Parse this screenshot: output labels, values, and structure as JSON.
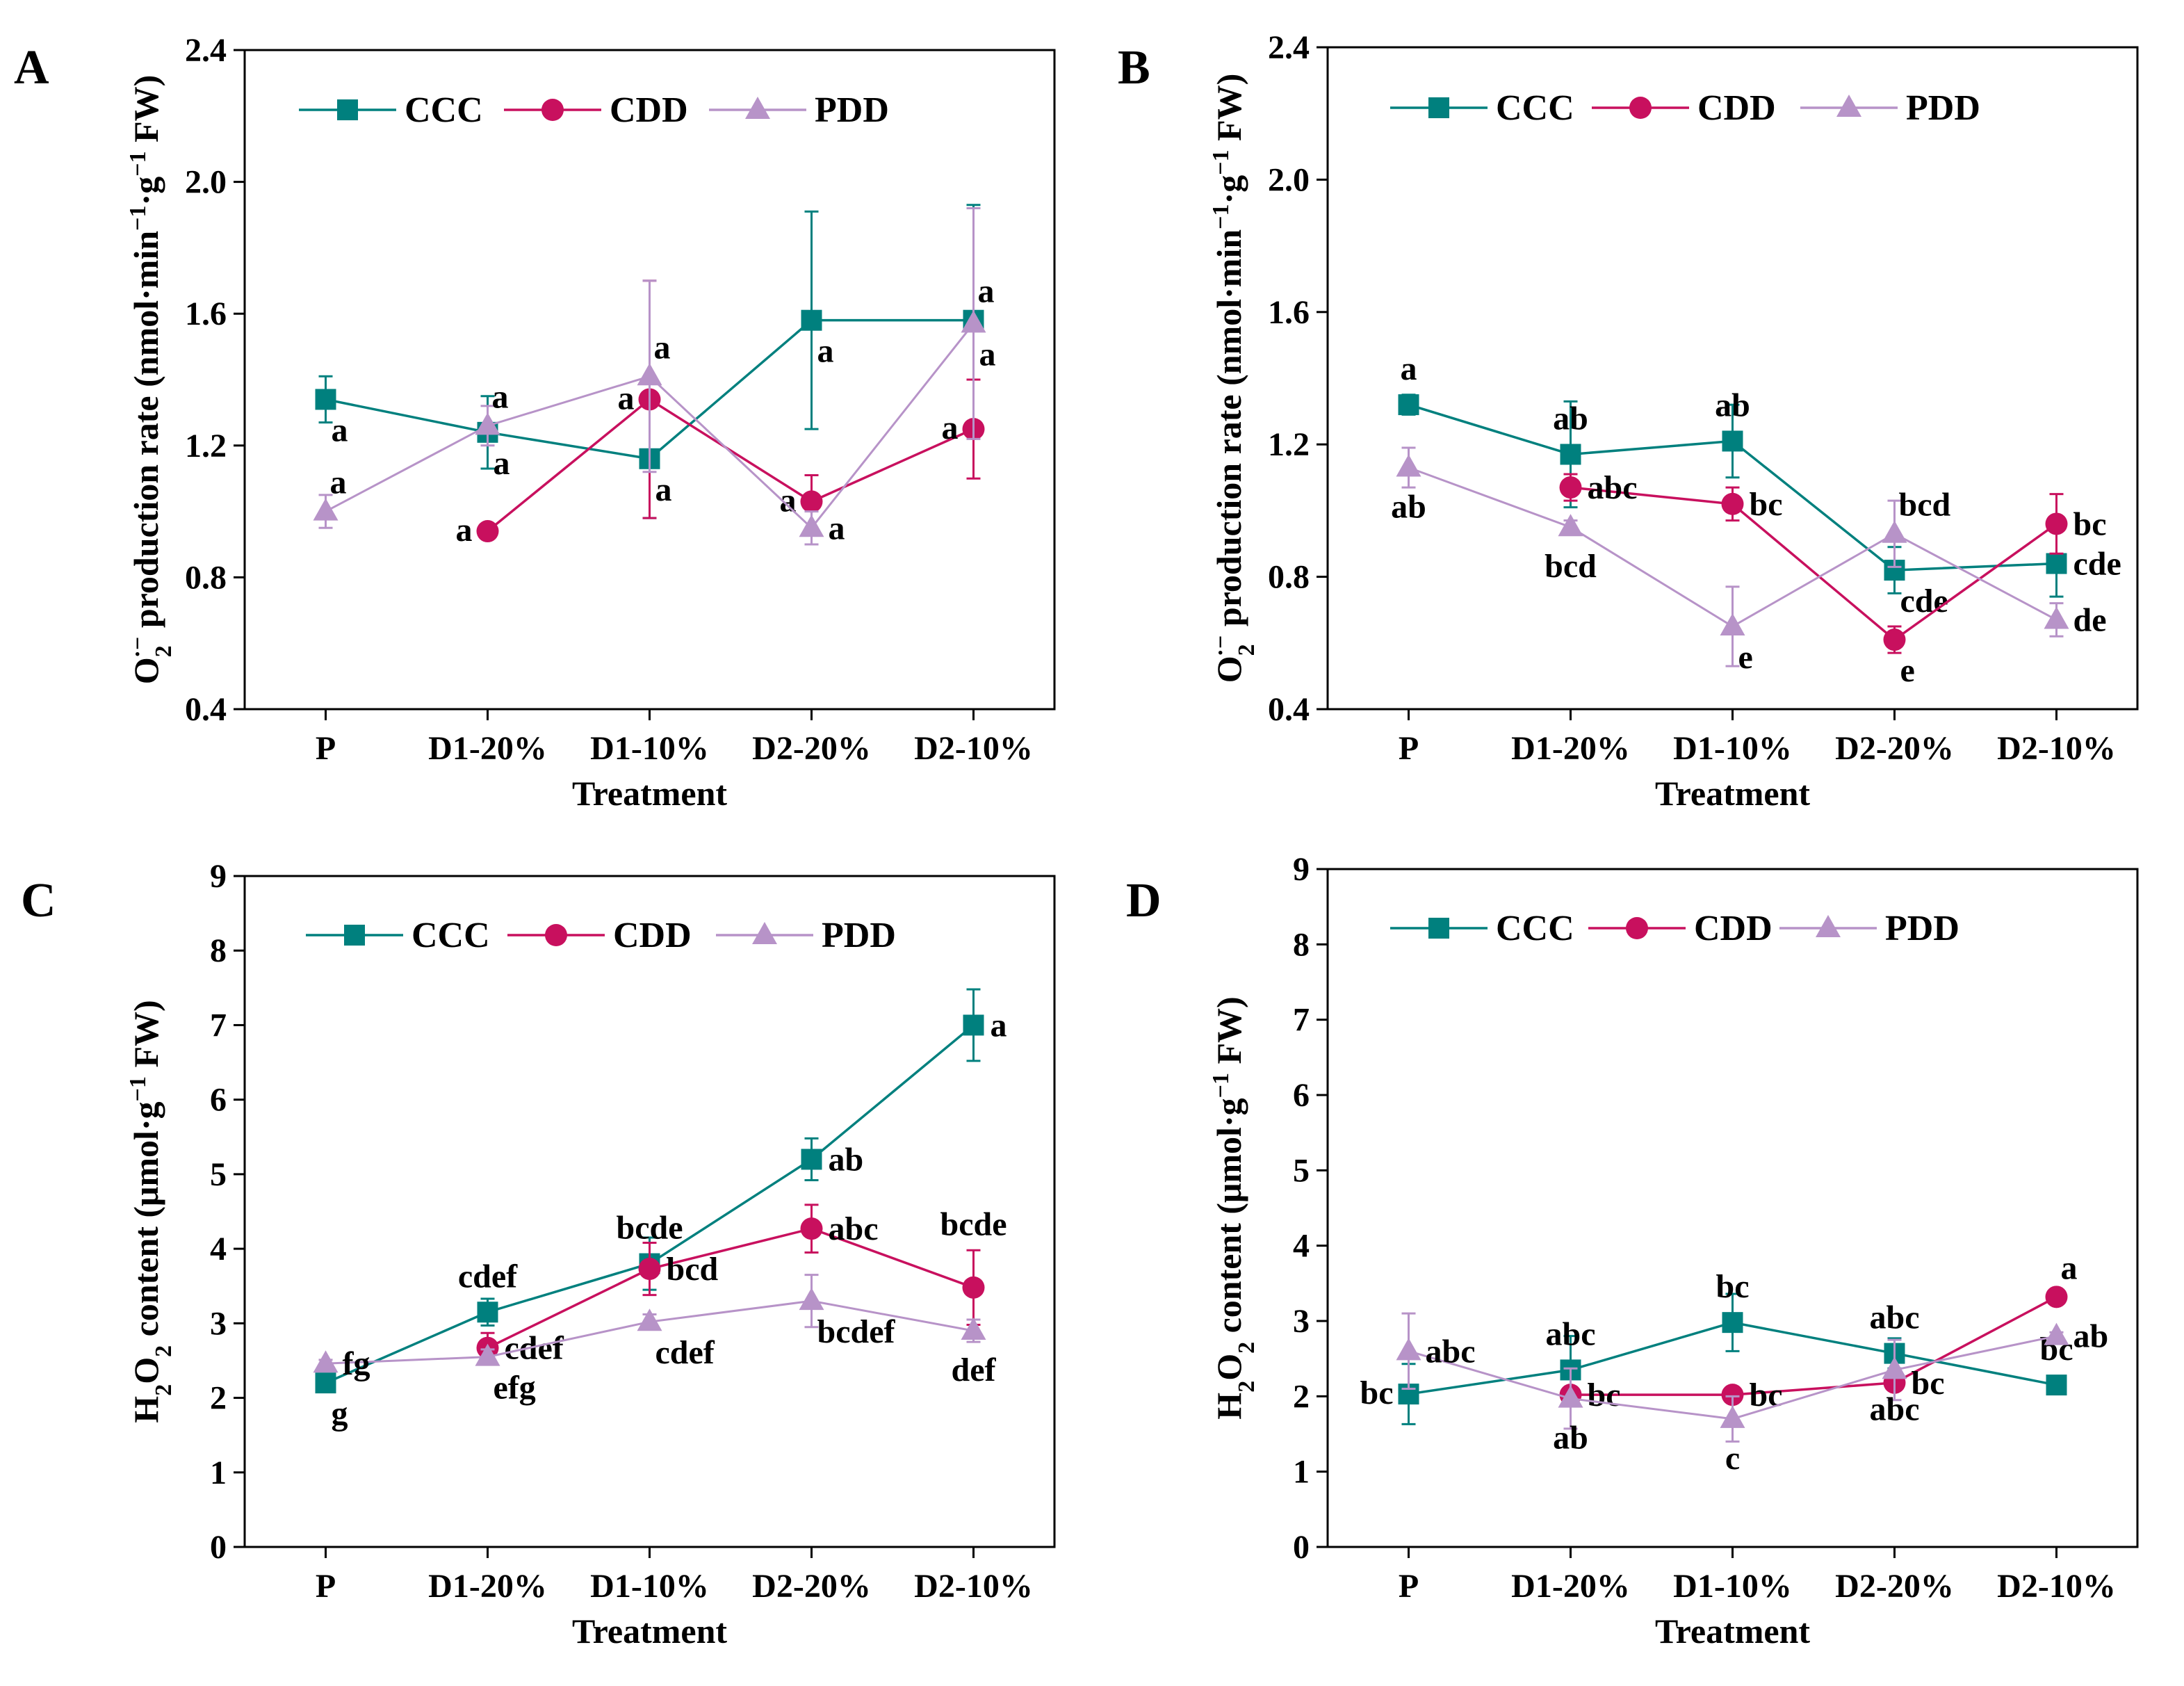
{
  "colors": {
    "CCC": "#00807e",
    "CDD": "#c8105e",
    "PDD": "#b793c8"
  },
  "chart_data": [
    {
      "type": "line",
      "panel": "A",
      "title": "",
      "xlabel": "Treatment",
      "ylabel": "O2·− production rate (nmol·min−1·g−1 FW)",
      "ylabel_parts": {
        "o": "O",
        "sub": "2",
        "sup": "·−",
        "mid": " production rate (nmol·min",
        "sup1": "−1",
        "mid2": "·g",
        "sup2": "−1",
        "end": " FW)"
      },
      "categories": [
        "P",
        "D1-20%",
        "D1-10%",
        "D2-20%",
        "D2-10%"
      ],
      "ylim": [
        0.4,
        2.4
      ],
      "yticks": [
        "0.4",
        "0.8",
        "1.2",
        "1.6",
        "2.0",
        "2.4"
      ],
      "legend": [
        "CCC",
        "CDD",
        "PDD"
      ],
      "series": [
        {
          "name": "CCC",
          "values": [
            1.34,
            1.24,
            1.16,
            1.58,
            1.58
          ],
          "errors": [
            0.07,
            0.11,
            0.18,
            0.33,
            0.35
          ],
          "labels": [
            "a",
            "a",
            "a",
            "a",
            "a"
          ],
          "label_pos": [
            "below-right",
            "below-right",
            "below-right",
            "below-right",
            "above-right"
          ]
        },
        {
          "name": "CDD",
          "values": [
            null,
            0.94,
            1.34,
            1.03,
            1.25
          ],
          "errors": [
            null,
            0.0,
            0.36,
            0.08,
            0.15
          ],
          "labels": [
            "",
            "a",
            "a",
            "a",
            "a"
          ],
          "label_pos": [
            "",
            "left",
            "left",
            "left",
            "left"
          ]
        },
        {
          "name": "PDD",
          "values": [
            1.0,
            1.26,
            1.41,
            0.95,
            1.57
          ],
          "errors": [
            0.05,
            0.06,
            0.29,
            0.05,
            0.35
          ],
          "labels": [
            "a",
            "a",
            "a",
            "a",
            "a"
          ],
          "label_pos": [
            "above-right",
            "above-right",
            "above-right",
            "right",
            "below-right"
          ]
        }
      ]
    },
    {
      "type": "line",
      "panel": "B",
      "title": "",
      "xlabel": "Treatment",
      "ylabel": "O2·− production rate (nmol·min−1·g−1 FW)",
      "ylabel_parts": {
        "o": "O",
        "sub": "2",
        "sup": "·−",
        "mid": " production rate (nmol·min",
        "sup1": "−1",
        "mid2": "·g",
        "sup2": "−1",
        "end": " FW)"
      },
      "categories": [
        "P",
        "D1-20%",
        "D1-10%",
        "D2-20%",
        "D2-10%"
      ],
      "ylim": [
        0.4,
        2.4
      ],
      "yticks": [
        "0.4",
        "0.8",
        "1.2",
        "1.6",
        "2.0",
        "2.4"
      ],
      "legend": [
        "CCC",
        "CDD",
        "PDD"
      ],
      "series": [
        {
          "name": "CCC",
          "values": [
            1.32,
            1.17,
            1.21,
            0.82,
            0.84
          ],
          "errors": [
            0.03,
            0.16,
            0.11,
            0.07,
            0.1
          ],
          "labels": [
            "a",
            "ab",
            "ab",
            "cde",
            "cde"
          ],
          "label_pos": [
            "above",
            "above",
            "above",
            "below-right",
            "right"
          ]
        },
        {
          "name": "CDD",
          "values": [
            null,
            1.07,
            1.02,
            0.61,
            0.96
          ],
          "errors": [
            null,
            0.04,
            0.05,
            0.04,
            0.09
          ],
          "labels": [
            "",
            "abc",
            "bc",
            "e",
            "bc"
          ],
          "label_pos": [
            "",
            "right",
            "right",
            "below-right",
            "right"
          ]
        },
        {
          "name": "PDD",
          "values": [
            1.13,
            0.95,
            0.65,
            0.93,
            0.67
          ],
          "errors": [
            0.06,
            0.02,
            0.12,
            0.1,
            0.05
          ],
          "labels": [
            "ab",
            "bcd",
            "e",
            "bcd",
            "de"
          ],
          "label_pos": [
            "below",
            "below",
            "below-right",
            "above-right",
            "right"
          ]
        }
      ]
    },
    {
      "type": "line",
      "panel": "C",
      "title": "",
      "xlabel": "Treatment",
      "ylabel": "H2O2 content (μmol·g−1 FW)",
      "ylabel_parts": {
        "h": "H",
        "sub": "2",
        "o": "O",
        "sub2": "2",
        "mid": " content (μmol·g",
        "sup": "−1",
        "end": " FW)"
      },
      "categories": [
        "P",
        "D1-20%",
        "D1-10%",
        "D2-20%",
        "D2-10%"
      ],
      "ylim": [
        0,
        9
      ],
      "yticks": [
        "0",
        "1",
        "2",
        "3",
        "4",
        "5",
        "6",
        "7",
        "8",
        "9"
      ],
      "legend": [
        "CCC",
        "CDD",
        "PDD"
      ],
      "series": [
        {
          "name": "CCC",
          "values": [
            2.2,
            3.15,
            3.8,
            5.2,
            7.0
          ],
          "errors": [
            0.05,
            0.18,
            0.35,
            0.28,
            0.48
          ],
          "labels": [
            "g",
            "cdef",
            "bcde",
            "ab",
            "a"
          ],
          "label_pos": [
            "below-right",
            "above",
            "above",
            "right",
            "right"
          ]
        },
        {
          "name": "CDD",
          "values": [
            null,
            2.67,
            3.73,
            4.27,
            3.48
          ],
          "errors": [
            null,
            0.2,
            0.35,
            0.32,
            0.5
          ],
          "labels": [
            "",
            "cdef",
            "bcd",
            "abc",
            "bcde"
          ],
          "label_pos": [
            "",
            "right",
            "right",
            "right",
            "above-far"
          ]
        },
        {
          "name": "PDD",
          "values": [
            2.46,
            2.55,
            3.02,
            3.3,
            2.9
          ],
          "errors": [
            0.05,
            0.1,
            0.1,
            0.35,
            0.15
          ],
          "labels": [
            "fg",
            "efg",
            "cdef",
            "bcdef",
            "def"
          ],
          "label_pos": [
            "right",
            "below-right",
            "below-right",
            "below-right",
            "below"
          ]
        }
      ]
    },
    {
      "type": "line",
      "panel": "D",
      "title": "",
      "xlabel": "Treatment",
      "ylabel": "H2O2 content (μmol·g−1 FW)",
      "ylabel_parts": {
        "h": "H",
        "sub": "2",
        "o": "O",
        "sub2": "2",
        "mid": " content (μmol·g",
        "sup": "−1",
        "end": " FW)"
      },
      "categories": [
        "P",
        "D1-20%",
        "D1-10%",
        "D2-20%",
        "D2-10%"
      ],
      "ylim": [
        0,
        9
      ],
      "yticks": [
        "0",
        "1",
        "2",
        "3",
        "4",
        "5",
        "6",
        "7",
        "8",
        "9"
      ],
      "legend": [
        "CCC",
        "CDD",
        "PDD"
      ],
      "series": [
        {
          "name": "CCC",
          "values": [
            2.03,
            2.35,
            2.98,
            2.57,
            2.15
          ],
          "errors": [
            0.4,
            0.45,
            0.38,
            0.2,
            0.05
          ],
          "labels": [
            "bc",
            "abc",
            "bc",
            "abc",
            "bc"
          ],
          "label_pos": [
            "left",
            "above",
            "above",
            "above",
            "above"
          ]
        },
        {
          "name": "CDD",
          "values": [
            null,
            2.02,
            2.02,
            2.18,
            3.32
          ],
          "errors": [
            null,
            0.05,
            0.05,
            0.1,
            0.05
          ],
          "labels": [
            "",
            "bc",
            "bc",
            "bc",
            "a"
          ],
          "label_pos": [
            "",
            "right",
            "right",
            "right",
            "above-right"
          ]
        },
        {
          "name": "PDD",
          "values": [
            2.6,
            1.97,
            1.7,
            2.35,
            2.8
          ],
          "errors": [
            0.5,
            0.4,
            0.3,
            0.4,
            0.05
          ],
          "labels": [
            "abc",
            "ab",
            "c",
            "abc",
            "ab"
          ],
          "label_pos": [
            "right",
            "below",
            "below",
            "below",
            "right"
          ]
        }
      ]
    }
  ]
}
